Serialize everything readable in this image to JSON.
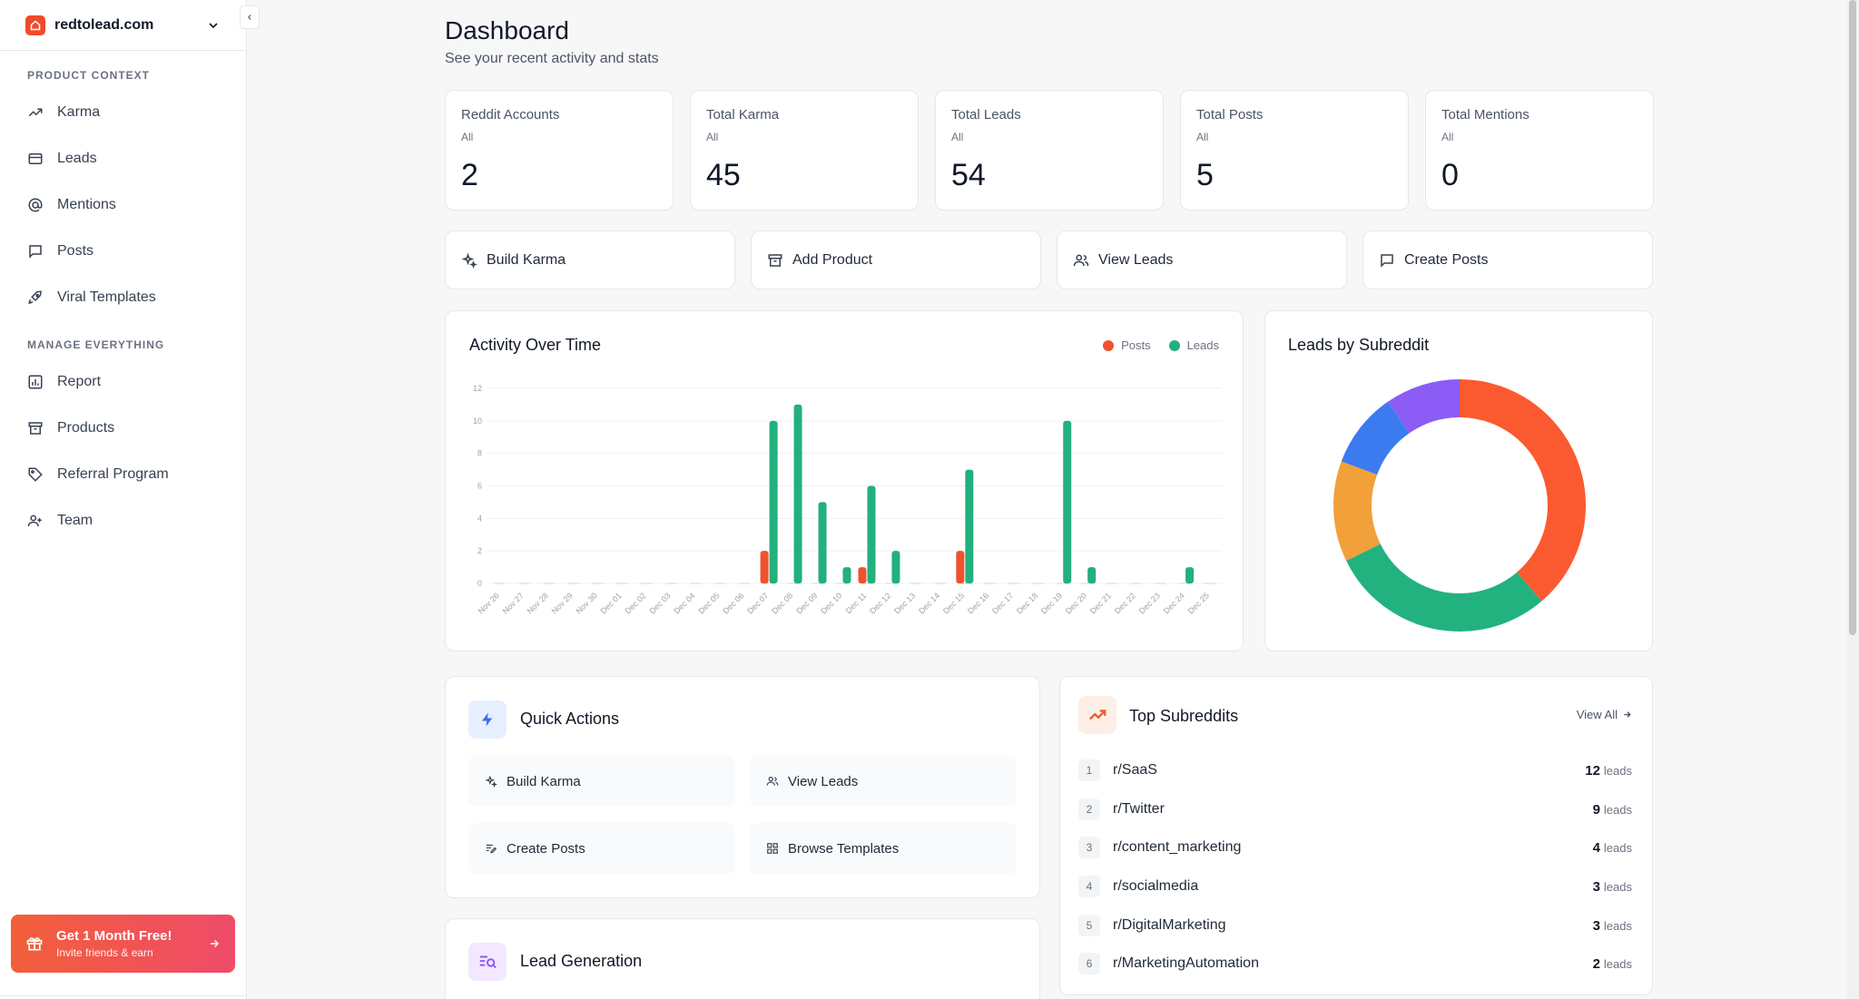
{
  "sidebar": {
    "brand": "redtolead.com",
    "sections": [
      {
        "title": "PRODUCT CONTEXT",
        "items": [
          {
            "label": "Karma",
            "icon": "trend-icon"
          },
          {
            "label": "Leads",
            "icon": "card-icon"
          },
          {
            "label": "Mentions",
            "icon": "at-icon"
          },
          {
            "label": "Posts",
            "icon": "message-icon"
          },
          {
            "label": "Viral Templates",
            "icon": "rocket-icon"
          }
        ]
      },
      {
        "title": "MANAGE EVERYTHING",
        "items": [
          {
            "label": "Report",
            "icon": "chart-icon"
          },
          {
            "label": "Products",
            "icon": "archive-icon"
          },
          {
            "label": "Referral Program",
            "icon": "tag-icon"
          },
          {
            "label": "Team",
            "icon": "users-icon"
          }
        ]
      }
    ],
    "promo": {
      "title": "Get 1 Month Free!",
      "subtitle": "Invite friends & earn"
    }
  },
  "header": {
    "title": "Dashboard",
    "subtitle": "See your recent activity and stats"
  },
  "stats": [
    {
      "label": "Reddit Accounts",
      "filter": "All",
      "value": "2"
    },
    {
      "label": "Total Karma",
      "filter": "All",
      "value": "45"
    },
    {
      "label": "Total Leads",
      "filter": "All",
      "value": "54"
    },
    {
      "label": "Total Posts",
      "filter": "All",
      "value": "5"
    },
    {
      "label": "Total Mentions",
      "filter": "All",
      "value": "0"
    }
  ],
  "actions": [
    "Build Karma",
    "Add Product",
    "View Leads",
    "Create Posts"
  ],
  "activity": {
    "title": "Activity Over Time"
  },
  "chart_data": [
    {
      "type": "bar",
      "title": "Activity Over Time",
      "legend_position": "top-right",
      "grid": true,
      "ylim": [
        0,
        12
      ],
      "yticks": [
        0,
        2,
        4,
        6,
        8,
        10,
        12
      ],
      "categories": [
        "Nov 26",
        "Nov 27",
        "Nov 28",
        "Nov 29",
        "Nov 30",
        "Dec 01",
        "Dec 02",
        "Dec 03",
        "Dec 04",
        "Dec 05",
        "Dec 06",
        "Dec 07",
        "Dec 08",
        "Dec 09",
        "Dec 10",
        "Dec 11",
        "Dec 12",
        "Dec 13",
        "Dec 14",
        "Dec 15",
        "Dec 16",
        "Dec 17",
        "Dec 18",
        "Dec 19",
        "Dec 20",
        "Dec 21",
        "Dec 22",
        "Dec 23",
        "Dec 24",
        "Dec 25"
      ],
      "series": [
        {
          "name": "Posts",
          "color": "#f0522d",
          "values": [
            0,
            0,
            0,
            0,
            0,
            0,
            0,
            0,
            0,
            0,
            0,
            2,
            0,
            0,
            0,
            1,
            0,
            0,
            0,
            2,
            0,
            0,
            0,
            0,
            0,
            0,
            0,
            0,
            0,
            0
          ]
        },
        {
          "name": "Leads",
          "color": "#22b07d",
          "values": [
            0,
            0,
            0,
            0,
            0,
            0,
            0,
            0,
            0,
            0,
            0,
            10,
            11,
            5,
            1,
            6,
            2,
            0,
            0,
            7,
            0,
            0,
            0,
            10,
            1,
            0,
            0,
            0,
            1,
            0
          ]
        }
      ]
    },
    {
      "type": "pie",
      "title": "Leads by Subreddit",
      "donut": true,
      "slices": [
        {
          "color": "#fb5a30",
          "value": 12
        },
        {
          "color": "#22b27f",
          "value": 9
        },
        {
          "color": "#f2a03a",
          "value": 4
        },
        {
          "color": "#3b7bef",
          "value": 3
        },
        {
          "color": "#8b5cf6",
          "value": 3
        }
      ]
    }
  ],
  "quick_actions": {
    "title": "Quick Actions",
    "items": [
      {
        "label": "Build Karma",
        "icon": "sparkle-icon"
      },
      {
        "label": "View Leads",
        "icon": "users-icon"
      },
      {
        "label": "Create Posts",
        "icon": "edit-list-icon"
      },
      {
        "label": "Browse Templates",
        "icon": "grid-icon"
      }
    ]
  },
  "top_subreddits": {
    "title": "Top Subreddits",
    "view_all": "View All",
    "unit": "leads",
    "items": [
      {
        "rank": "1",
        "name": "r/SaaS",
        "count": "12"
      },
      {
        "rank": "2",
        "name": "r/Twitter",
        "count": "9"
      },
      {
        "rank": "3",
        "name": "r/content_marketing",
        "count": "4"
      },
      {
        "rank": "4",
        "name": "r/socialmedia",
        "count": "3"
      },
      {
        "rank": "5",
        "name": "r/DigitalMarketing",
        "count": "3"
      },
      {
        "rank": "6",
        "name": "r/MarketingAutomation",
        "count": "2"
      }
    ]
  },
  "lead_generation": {
    "title": "Lead Generation"
  },
  "colors": {
    "accent": "#ef4b2b",
    "green": "#22b07d",
    "border": "#e5e7eb"
  }
}
